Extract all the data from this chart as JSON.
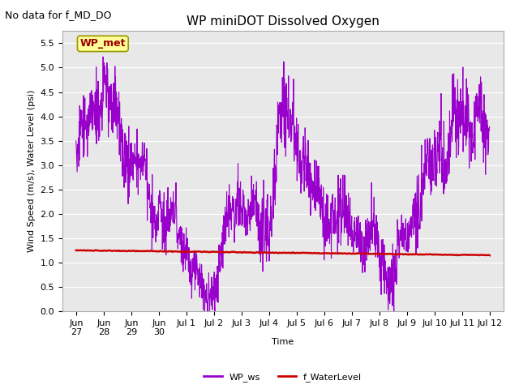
{
  "title": "WP miniDOT Dissolved Oxygen",
  "no_data_text": "No data for f_MD_DO",
  "ylabel": "Wind Speed (m/s), Water Level (psi)",
  "xlabel": "Time",
  "ylim": [
    0.0,
    5.75
  ],
  "yticks": [
    0.0,
    0.5,
    1.0,
    1.5,
    2.0,
    2.5,
    3.0,
    3.5,
    4.0,
    4.5,
    5.0,
    5.5
  ],
  "bg_color": "#e8e8e8",
  "fig_bg_color": "#ffffff",
  "xtick_labels": [
    "Jun\n27",
    "Jun\n28",
    "Jun\n29",
    "Jun\n30",
    "Jul 1",
    "Jul 2",
    "Jul 3",
    "Jul 4",
    "Jul 5",
    "Jul 6",
    "Jul 7",
    "Jul 8",
    "Jul 9",
    "Jul 10",
    "Jul 11",
    "Jul 12"
  ],
  "wp_ws_color": "#9900cc",
  "f_wl_color": "#cc0000",
  "legend_wp_ws_label": "WP_ws",
  "legend_fwl_label": "f_WaterLevel",
  "wp_met_box_color": "#ffff99",
  "wp_met_text_color": "#990000",
  "wp_met_label": "WP_met",
  "title_fontsize": 11,
  "axis_label_fontsize": 8,
  "tick_fontsize": 8,
  "legend_fontsize": 8,
  "no_data_fontsize": 9,
  "wp_met_fontsize": 9
}
